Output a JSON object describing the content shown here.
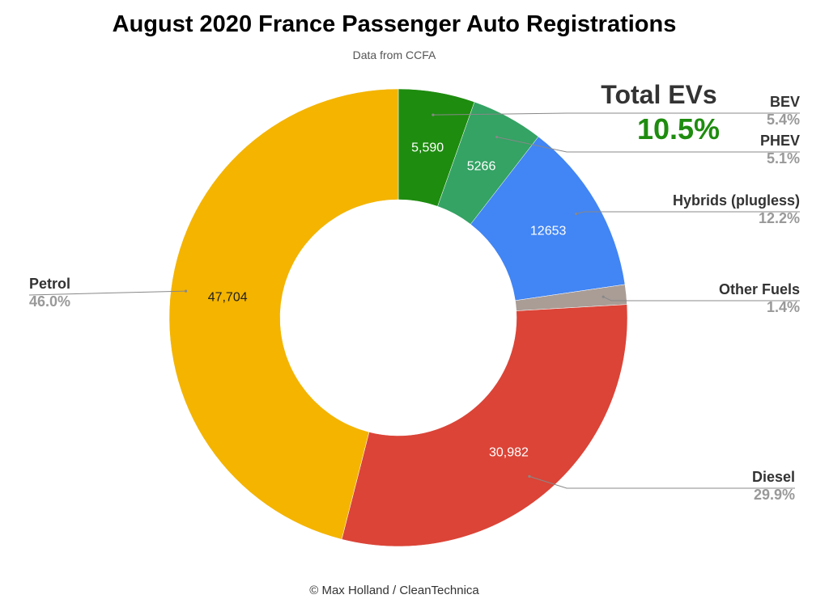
{
  "chart_data": {
    "type": "pie",
    "title": "August 2020 France Passenger Auto Registrations",
    "subtitle": "Data from CCFA",
    "footer": "© Max Holland / CleanTechnica",
    "slices": [
      {
        "label": "BEV",
        "value": 5590,
        "value_label": "5,590",
        "percent_label": "5.4%",
        "color": "#1e8c0f"
      },
      {
        "label": "PHEV",
        "value": 5266,
        "value_label": "5266",
        "percent_label": "5.1%",
        "color": "#34a364"
      },
      {
        "label": "Hybrids (plugless)",
        "value": 12653,
        "value_label": "12653",
        "percent_label": "12.2%",
        "color": "#4285f4"
      },
      {
        "label": "Other Fuels",
        "value": 1450,
        "value_label": "",
        "percent_label": "1.4%",
        "color": "#a99d96"
      },
      {
        "label": "Diesel",
        "value": 30982,
        "value_label": "30,982",
        "percent_label": "29.9%",
        "color": "#db4437"
      },
      {
        "label": "Petrol",
        "value": 47704,
        "value_label": "47,704",
        "percent_label": "46.0%",
        "color": "#f4b400"
      }
    ],
    "annotation": {
      "heading": "Total EVs",
      "value": "10.5%",
      "value_color": "#1e8c0f"
    },
    "legend_position": "outside-labels"
  }
}
